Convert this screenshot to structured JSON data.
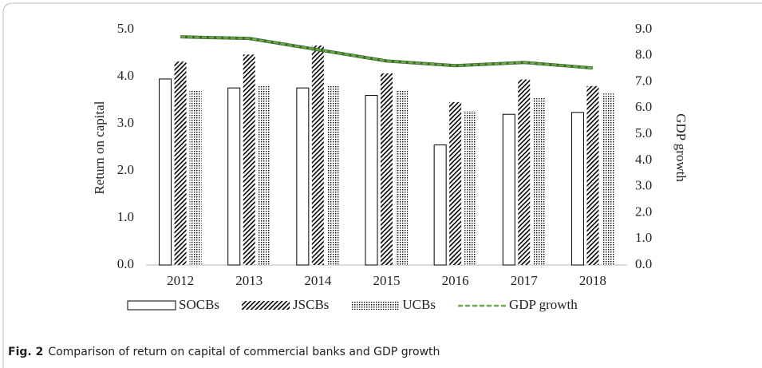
{
  "chart_data": {
    "type": "bar",
    "categories": [
      "2012",
      "2013",
      "2014",
      "2015",
      "2016",
      "2017",
      "2018"
    ],
    "series": [
      {
        "name": "SOCBs",
        "color": "#000000",
        "pattern": "none",
        "values": [
          3.95,
          3.76,
          3.76,
          3.6,
          2.55,
          3.2,
          3.24
        ]
      },
      {
        "name": "JSCBs",
        "color": "#000000",
        "pattern": "diagonal",
        "values": [
          4.32,
          4.47,
          4.66,
          4.07,
          3.46,
          3.94,
          3.8
        ]
      },
      {
        "name": "UCBs",
        "color": "#000000",
        "pattern": "dots",
        "values": [
          3.7,
          3.8,
          3.8,
          3.7,
          3.27,
          3.56,
          3.64
        ]
      },
      {
        "name": "GDP growth",
        "type": "line",
        "axis": "y2",
        "color": "#6aa84f",
        "values": [
          8.72,
          8.66,
          8.23,
          7.8,
          7.62,
          7.74,
          7.53
        ]
      }
    ],
    "ylabel": "Return on capital",
    "y2label": "GDP growth",
    "ylim": [
      0,
      5
    ],
    "yticks": [
      {
        "value": 0,
        "label": "0.0"
      },
      {
        "value": 1,
        "label": "1.0"
      },
      {
        "value": 2,
        "label": "2.0"
      },
      {
        "value": 3,
        "label": "3.0"
      },
      {
        "value": 4,
        "label": "4.0"
      },
      {
        "value": 5,
        "label": "5.0"
      }
    ],
    "y2lim": [
      0,
      9
    ],
    "y2ticks": [
      {
        "value": 0,
        "label": "0.0"
      },
      {
        "value": 1,
        "label": "1.0"
      },
      {
        "value": 2,
        "label": "2.0"
      },
      {
        "value": 3,
        "label": "3.0"
      },
      {
        "value": 4,
        "label": "4.0"
      },
      {
        "value": 5,
        "label": "5.0"
      },
      {
        "value": 6,
        "label": "6.0"
      },
      {
        "value": 7,
        "label": "7.0"
      },
      {
        "value": 8,
        "label": "8.0"
      },
      {
        "value": 9,
        "label": "9.0"
      }
    ],
    "legend": "bottom"
  },
  "figure": {
    "label": "Fig. 2",
    "caption": "Comparison of return on capital of commercial banks and GDP growth"
  }
}
